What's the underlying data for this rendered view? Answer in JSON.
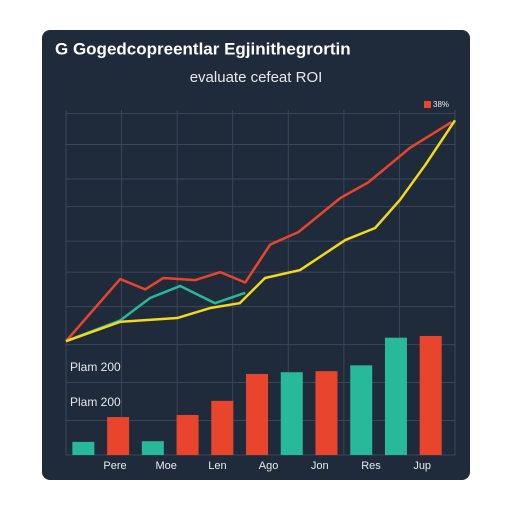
{
  "chart_data": {
    "type": "line-bar",
    "title": "G Gogedcopreentlar Egjinithegrortin",
    "subtitle": "evaluate cefeat ROI",
    "legend": {
      "label": "38%",
      "color": "#e8452c",
      "corner": "top-right"
    },
    "annotations": [
      "Plam 200",
      "Plam 200"
    ],
    "categories": [
      "Pere",
      "Moe",
      "Len",
      "Ago",
      "Jon",
      "Res",
      "Jup"
    ],
    "xlim": [
      0,
      11.2
    ],
    "xticks": [
      0,
      1.6,
      3.2,
      4.8,
      6.4,
      8,
      9.6,
      11.2
    ],
    "ylim": [
      0,
      100
    ],
    "yticks": [
      0,
      10,
      21,
      32,
      43,
      53,
      62,
      72,
      80,
      90,
      99
    ],
    "grid": true,
    "lines": [
      {
        "color": "#e8452c",
        "x": [
          0,
          1.56,
          2.28,
          2.8,
          3.72,
          4.44,
          5.16,
          5.88,
          6.69,
          7.9,
          8.7,
          9.9,
          11.1
        ],
        "values": [
          33,
          51,
          48,
          51.3,
          50.7,
          53,
          50,
          61,
          64.6,
          74.5,
          79,
          89,
          96.5
        ]
      },
      {
        "color": "#27b99a",
        "x": [
          0,
          1.56,
          2.42,
          3.29,
          4.29,
          5.16
        ],
        "values": [
          33,
          39,
          45.5,
          49,
          44,
          47
        ]
      },
      {
        "color": "#f2d91e",
        "x": [
          0,
          1.56,
          3.2,
          4.15,
          5.0,
          5.73,
          6.74,
          8.04,
          8.9,
          9.62,
          10.34,
          11.2
        ],
        "values": [
          33,
          38.6,
          39.7,
          42.6,
          44,
          51.3,
          53.6,
          62.3,
          65.8,
          74,
          84,
          97
        ]
      }
    ],
    "bars": {
      "x": [
        0.5,
        1.5,
        2.5,
        3.5,
        4.5,
        5.5,
        6.5,
        7.5,
        8.5,
        9.5,
        10.5
      ],
      "values": [
        3.8,
        11,
        4,
        11.6,
        15.7,
        23.5,
        24,
        24.3,
        26,
        34,
        34.5
      ],
      "colors": [
        "#27b99a",
        "#e8452c",
        "#27b99a",
        "#e8452c",
        "#e8452c",
        "#e8452c",
        "#27b99a",
        "#e8452c",
        "#27b99a",
        "#27b99a",
        "#e8452c"
      ]
    }
  }
}
